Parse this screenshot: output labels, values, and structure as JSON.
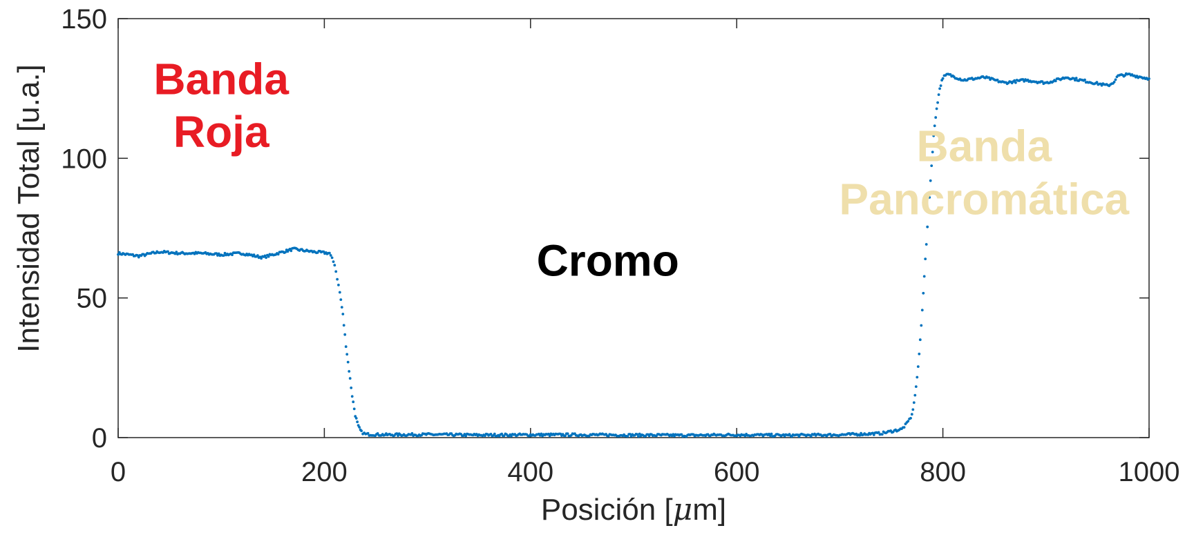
{
  "chart_data": {
    "type": "scatter",
    "title": "",
    "xlabel_main": "Posición [",
    "xlabel_mu": "μ",
    "xlabel_end": "m]",
    "ylabel": "Intensidad Total [u.a.]",
    "xlim": [
      0,
      1000
    ],
    "ylim": [
      0,
      150
    ],
    "xticks": [
      0,
      200,
      400,
      600,
      800,
      1000
    ],
    "yticks": [
      0,
      50,
      100,
      150
    ],
    "xtick_labels": [
      "0",
      "200",
      "400",
      "600",
      "800",
      "1000"
    ],
    "ytick_labels": [
      "0",
      "50",
      "100",
      "150"
    ],
    "grid": false,
    "series_color": "#0072BD",
    "series": [
      {
        "x": [
          0,
          20,
          40,
          60,
          80,
          100,
          120,
          140,
          160,
          170,
          190,
          205,
          210,
          215,
          218,
          221,
          224,
          227,
          230,
          233,
          236,
          240,
          260,
          300,
          350,
          400,
          450,
          500,
          550,
          600,
          650,
          700,
          740,
          760,
          765,
          770,
          773,
          776,
          779,
          782,
          785,
          788,
          791,
          794,
          797,
          800,
          805,
          820,
          840,
          860,
          880,
          900,
          920,
          940,
          960,
          965,
          970,
          980,
          1000
        ],
        "y": [
          66,
          65,
          66.5,
          66,
          66,
          65.5,
          66,
          64.5,
          66.5,
          67.5,
          66.5,
          66,
          62,
          52,
          44,
          33,
          24,
          15,
          8,
          4,
          2,
          1.2,
          1,
          1.1,
          0.9,
          1,
          1,
          0.9,
          0.8,
          1,
          0.8,
          1,
          1.5,
          3,
          5,
          8,
          15,
          25,
          40,
          58,
          75,
          92,
          108,
          118,
          125,
          129,
          130,
          128,
          129,
          127,
          128,
          127,
          129,
          127.5,
          126,
          127,
          129.5,
          130,
          128.5
        ]
      }
    ],
    "annotations": [
      {
        "lines": [
          "Banda",
          "Roja"
        ],
        "color": "#E81C24",
        "x": 100,
        "y_top": 123,
        "y_bottom": 104
      },
      {
        "lines": [
          "Cromo"
        ],
        "color": "#000000",
        "x": 475,
        "y_top": 58
      },
      {
        "lines": [
          "Banda",
          "Pancromática"
        ],
        "color": "#EFDFAB",
        "x": 840,
        "y_top": 99,
        "y_bottom": 80
      }
    ]
  }
}
